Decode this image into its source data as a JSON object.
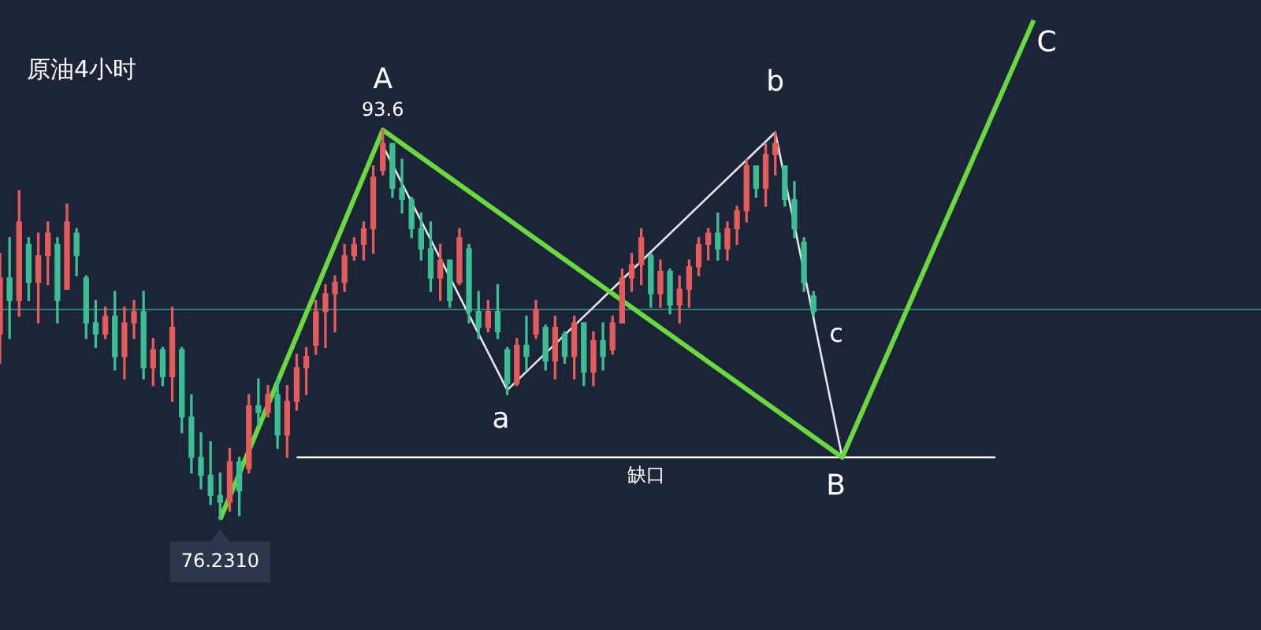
{
  "chart_data": {
    "type": "candlestick",
    "title": "原油4小时",
    "tick_labels": false,
    "categories": [
      null,
      null,
      null,
      null,
      null,
      null,
      null,
      null,
      null,
      null,
      null,
      null,
      null,
      null,
      null,
      null,
      null,
      null,
      null,
      null,
      null,
      null,
      null,
      null,
      null,
      null,
      null,
      null,
      null,
      null,
      null,
      null,
      null,
      null,
      null,
      null,
      null,
      null,
      null,
      null,
      null,
      null,
      null,
      null,
      null,
      null,
      null,
      null,
      null,
      null,
      null,
      null,
      null,
      null,
      null,
      null,
      null,
      null,
      null,
      null,
      null,
      null,
      null,
      null,
      null,
      null,
      null,
      null,
      null,
      null,
      null,
      null,
      null,
      null,
      null,
      null,
      null,
      null,
      null,
      null,
      null,
      null,
      null,
      null,
      null,
      null,
      null,
      null,
      null,
      null,
      null,
      null,
      null,
      null,
      null,
      null,
      null,
      null,
      null,
      null,
      null,
      null,
      null,
      null,
      null,
      null,
      null,
      null,
      null,
      null,
      null,
      null
    ],
    "ohlc": [
      [
        84.5,
        88.1,
        83.2,
        87.0
      ],
      [
        87.0,
        88.8,
        84.3,
        86.0
      ],
      [
        86.0,
        90.9,
        85.3,
        89.5
      ],
      [
        88.5,
        88.8,
        86.0,
        86.8
      ],
      [
        86.8,
        89.0,
        85.0,
        88.0
      ],
      [
        88.0,
        89.5,
        86.7,
        89.0
      ],
      [
        88.5,
        88.8,
        85.0,
        86.0
      ],
      [
        86.5,
        90.3,
        86.5,
        89.5
      ],
      [
        89.0,
        89.2,
        87.1,
        88.0
      ],
      [
        87.0,
        87.1,
        84.3,
        85.0
      ],
      [
        85.0,
        86.0,
        83.9,
        84.5
      ],
      [
        84.5,
        85.7,
        84.3,
        85.3
      ],
      [
        85.3,
        86.4,
        82.9,
        83.5
      ],
      [
        83.5,
        85.7,
        82.5,
        85.0
      ],
      [
        85.0,
        86.0,
        84.3,
        85.5
      ],
      [
        85.5,
        86.4,
        82.5,
        83.0
      ],
      [
        83.0,
        84.3,
        82.2,
        83.8
      ],
      [
        83.8,
        83.9,
        82.2,
        82.6
      ],
      [
        82.6,
        85.7,
        81.5,
        84.8
      ],
      [
        83.8,
        83.9,
        80.1,
        80.8
      ],
      [
        80.8,
        81.8,
        78.3,
        79.0
      ],
      [
        79.0,
        80.1,
        77.6,
        78.2
      ],
      [
        78.2,
        79.7,
        76.9,
        77.3
      ],
      [
        77.3,
        78.3,
        76.231,
        77.0
      ],
      [
        77.0,
        79.4,
        76.6,
        78.8
      ],
      [
        78.8,
        79.0,
        76.4,
        77.5
      ],
      [
        78.5,
        81.8,
        78.3,
        81.3
      ],
      [
        81.3,
        82.5,
        80.4,
        81.0
      ],
      [
        81.0,
        82.2,
        80.8,
        81.8
      ],
      [
        81.8,
        82.5,
        79.4,
        80.0
      ],
      [
        80.0,
        82.2,
        79.0,
        81.5
      ],
      [
        81.5,
        83.6,
        81.1,
        83.0
      ],
      [
        83.0,
        83.9,
        81.8,
        83.5
      ],
      [
        84.0,
        86.0,
        83.6,
        85.5
      ],
      [
        85.5,
        86.7,
        83.9,
        86.3
      ],
      [
        86.3,
        87.1,
        84.6,
        86.8
      ],
      [
        86.8,
        88.5,
        86.4,
        88.0
      ],
      [
        88.0,
        88.8,
        87.8,
        88.5
      ],
      [
        88.5,
        89.5,
        87.8,
        89.2
      ],
      [
        89.2,
        92.0,
        88.1,
        91.5
      ],
      [
        91.8,
        93.6,
        91.6,
        93.0
      ],
      [
        93.0,
        93.0,
        90.6,
        91.0
      ],
      [
        91.0,
        92.3,
        89.9,
        90.5
      ],
      [
        90.5,
        90.6,
        88.8,
        89.2
      ],
      [
        89.2,
        89.9,
        87.8,
        88.3
      ],
      [
        88.3,
        89.5,
        86.4,
        87.0
      ],
      [
        87.0,
        88.5,
        86.0,
        87.8
      ],
      [
        87.8,
        87.8,
        85.7,
        86.0
      ],
      [
        86.8,
        89.2,
        86.7,
        88.8
      ],
      [
        88.3,
        88.5,
        85.0,
        85.5
      ],
      [
        85.5,
        86.4,
        84.3,
        84.8
      ],
      [
        84.8,
        86.0,
        84.6,
        85.5
      ],
      [
        85.5,
        86.7,
        84.3,
        84.6
      ],
      [
        83.8,
        83.9,
        81.8,
        82.3
      ],
      [
        82.3,
        84.3,
        82.2,
        84.0
      ],
      [
        84.0,
        85.3,
        82.9,
        83.5
      ],
      [
        84.5,
        86.0,
        84.3,
        85.6
      ],
      [
        84.8,
        84.9,
        82.9,
        83.3
      ],
      [
        83.3,
        85.3,
        82.5,
        84.8
      ],
      [
        84.5,
        84.6,
        83.2,
        83.5
      ],
      [
        83.5,
        85.3,
        82.5,
        85.0
      ],
      [
        85.0,
        85.0,
        82.2,
        82.8
      ],
      [
        82.8,
        84.6,
        82.2,
        84.2
      ],
      [
        84.2,
        85.0,
        82.9,
        83.5
      ],
      [
        83.8,
        85.3,
        83.6,
        85.0
      ],
      [
        85.0,
        87.4,
        85.0,
        87.0
      ],
      [
        87.0,
        88.1,
        86.4,
        87.6
      ],
      [
        87.6,
        89.2,
        86.7,
        88.8
      ],
      [
        88.0,
        88.1,
        85.7,
        86.3
      ],
      [
        86.3,
        87.8,
        85.7,
        87.3
      ],
      [
        87.3,
        87.4,
        85.4,
        85.8
      ],
      [
        85.8,
        87.1,
        85.0,
        86.5
      ],
      [
        86.5,
        87.8,
        85.7,
        87.5
      ],
      [
        87.5,
        88.8,
        87.1,
        88.5
      ],
      [
        88.5,
        89.2,
        87.8,
        89.0
      ],
      [
        89.0,
        89.9,
        87.8,
        88.3
      ],
      [
        88.3,
        89.5,
        87.8,
        89.2
      ],
      [
        89.2,
        90.2,
        88.5,
        90.0
      ],
      [
        90.0,
        92.3,
        89.5,
        92.0
      ],
      [
        92.0,
        92.0,
        90.6,
        91.0
      ],
      [
        91.0,
        93.0,
        90.2,
        92.5
      ],
      [
        92.5,
        93.5,
        91.6,
        93.0
      ],
      [
        92.0,
        92.0,
        90.2,
        90.5
      ],
      [
        90.5,
        91.3,
        88.8,
        89.2
      ],
      [
        88.6,
        88.8,
        86.4,
        86.8
      ],
      [
        86.2,
        86.4,
        85.3,
        85.5
      ],
      null,
      null,
      null,
      null,
      null,
      null,
      null,
      null,
      null,
      null,
      null,
      null,
      null,
      null,
      null,
      null,
      null,
      null,
      null,
      null,
      null,
      null,
      null,
      null,
      null,
      null
    ],
    "colors": [
      "#e35b5b",
      "#3dbd92",
      "#e35b5b",
      "#3dbd92",
      "#e35b5b",
      "#e35b5b",
      "#3dbd92",
      "#e35b5b",
      "#3dbd92",
      "#3dbd92",
      "#3dbd92",
      "#e35b5b",
      "#3dbd92",
      "#e35b5b",
      "#e35b5b",
      "#3dbd92",
      "#e35b5b",
      "#3dbd92",
      "#e35b5b",
      "#3dbd92",
      "#3dbd92",
      "#3dbd92",
      "#3dbd92",
      "#3dbd92",
      "#e35b5b",
      "#3dbd92",
      "#e35b5b",
      "#3dbd92",
      "#e35b5b",
      "#3dbd92",
      "#e35b5b",
      "#e35b5b",
      "#e35b5b",
      "#e35b5b",
      "#e35b5b",
      "#e35b5b",
      "#e35b5b",
      "#e35b5b",
      "#e35b5b",
      "#e35b5b",
      "#e35b5b",
      "#3dbd92",
      "#3dbd92",
      "#3dbd92",
      "#3dbd92",
      "#3dbd92",
      "#e35b5b",
      "#3dbd92",
      "#e35b5b",
      "#3dbd92",
      "#3dbd92",
      "#e35b5b",
      "#3dbd92",
      "#3dbd92",
      "#e35b5b",
      "#3dbd92",
      "#e35b5b",
      "#3dbd92",
      "#e35b5b",
      "#3dbd92",
      "#e35b5b",
      "#3dbd92",
      "#e35b5b",
      "#3dbd92",
      "#e35b5b",
      "#e35b5b",
      "#e35b5b",
      "#e35b5b",
      "#3dbd92",
      "#e35b5b",
      "#3dbd92",
      "#e35b5b",
      "#e35b5b",
      "#e35b5b",
      "#e35b5b",
      "#3dbd92",
      "#e35b5b",
      "#e35b5b",
      "#e35b5b",
      "#3dbd92",
      "#e35b5b",
      "#e35b5b",
      "#3dbd92",
      "#3dbd92",
      "#3dbd92",
      "#3dbd92",
      null,
      null,
      null,
      null,
      null,
      null,
      null,
      null,
      null,
      null,
      null,
      null,
      null,
      null,
      null,
      null,
      null,
      null,
      null,
      null,
      null,
      null,
      null,
      null,
      null,
      null
    ],
    "series": [
      {
        "type": "line",
        "color": "#6ad83f",
        "values": [
          null,
          null,
          null,
          null,
          null,
          null,
          null,
          null,
          null,
          null,
          null,
          null,
          null,
          null,
          null,
          null,
          null,
          null,
          null,
          null,
          null,
          null,
          null,
          76.231,
          null,
          null,
          null,
          null,
          null,
          null,
          null,
          null,
          null,
          null,
          null,
          null,
          null,
          null,
          null,
          null,
          93.6,
          null,
          null,
          null,
          null,
          null,
          null,
          null,
          null,
          null,
          null,
          null,
          null,
          null,
          null,
          null,
          null,
          null,
          null,
          null,
          null,
          null,
          null,
          null,
          null,
          null,
          null,
          null,
          null,
          null,
          null,
          null,
          null,
          null,
          null,
          null,
          null,
          null,
          null,
          null,
          null,
          null,
          null,
          null,
          null,
          null,
          null,
          null,
          79.0,
          null,
          null,
          null,
          null,
          null,
          null,
          null,
          null,
          null,
          null,
          null,
          null,
          null,
          null,
          null,
          null,
          null,
          null,
          null,
          98.5,
          null,
          null,
          null
        ]
      },
      {
        "type": "line",
        "color": "#e6e6e6",
        "values": [
          null,
          null,
          null,
          null,
          null,
          null,
          null,
          null,
          null,
          null,
          null,
          null,
          null,
          null,
          null,
          null,
          null,
          null,
          null,
          null,
          null,
          null,
          null,
          null,
          null,
          null,
          null,
          null,
          null,
          null,
          null,
          null,
          null,
          null,
          null,
          null,
          null,
          null,
          null,
          null,
          92.9,
          null,
          null,
          null,
          null,
          null,
          null,
          null,
          null,
          null,
          null,
          null,
          null,
          82.0,
          null,
          null,
          null,
          null,
          null,
          null,
          null,
          null,
          null,
          null,
          null,
          null,
          null,
          null,
          null,
          null,
          null,
          null,
          null,
          null,
          null,
          null,
          null,
          null,
          null,
          null,
          null,
          93.5,
          null,
          null,
          null,
          null,
          null,
          null,
          79.0,
          null,
          null,
          null,
          null,
          null,
          null,
          null,
          null,
          null,
          null,
          null,
          null,
          null,
          null,
          null,
          null,
          null,
          null,
          null,
          null,
          null,
          null,
          null
        ]
      },
      {
        "type": "line",
        "name": "缺口",
        "color": "#ffffff",
        "values": [
          null,
          null,
          null,
          null,
          null,
          null,
          null,
          null,
          null,
          null,
          null,
          null,
          null,
          null,
          null,
          null,
          null,
          null,
          null,
          null,
          null,
          null,
          null,
          null,
          null,
          null,
          null,
          null,
          null,
          null,
          null,
          79.0,
          null,
          null,
          null,
          null,
          null,
          null,
          null,
          null,
          null,
          null,
          null,
          null,
          null,
          null,
          null,
          null,
          null,
          null,
          null,
          null,
          null,
          null,
          null,
          null,
          null,
          null,
          null,
          null,
          null,
          null,
          null,
          null,
          null,
          null,
          null,
          null,
          null,
          null,
          null,
          null,
          null,
          null,
          null,
          null,
          null,
          null,
          null,
          null,
          null,
          null,
          null,
          null,
          null,
          null,
          null,
          null,
          null,
          null,
          null,
          null,
          null,
          null,
          null,
          null,
          null,
          null,
          null,
          null,
          null,
          null,
          null,
          null,
          79.0,
          null,
          null,
          null,
          null,
          null,
          null,
          null
        ]
      }
    ],
    "ref_lines": [
      {
        "axis": "y",
        "value": 85.6,
        "color": "#2f7f78"
      }
    ],
    "annotations": [
      {
        "text": "A",
        "y": 93.6
      },
      {
        "text": "93.6",
        "y": 93.6
      },
      {
        "text": "a",
        "y": 82.0
      },
      {
        "text": "b",
        "y": 93.5
      },
      {
        "text": "c",
        "y": 85.3
      },
      {
        "text": "B",
        "y": 79.0
      },
      "C",
      {
        "text": "76.2310",
        "y": 76.231
      }
    ],
    "ylim": [
      71.3,
      99.4
    ]
  }
}
